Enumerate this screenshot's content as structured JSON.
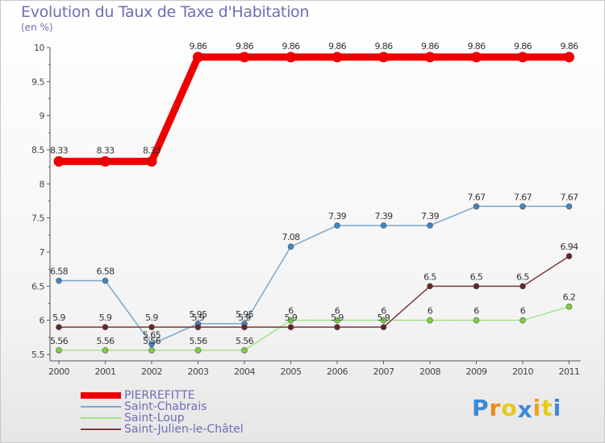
{
  "chart_data": {
    "type": "line",
    "title": "Evolution du Taux de Taxe d'Habitation",
    "subtitle": "(en %)",
    "xlabel": "",
    "ylabel": "",
    "categories": [
      "2000",
      "2001",
      "2002",
      "2003",
      "2004",
      "2005",
      "2006",
      "2007",
      "2008",
      "2009",
      "2010",
      "2011"
    ],
    "ylim": [
      5.5,
      10
    ],
    "yticks": [
      5.5,
      6,
      6.5,
      7,
      7.5,
      8,
      8.5,
      9,
      9.5,
      10
    ],
    "ytick_labels": [
      "5.5",
      "6",
      "6.5",
      "7",
      "7.5",
      "8",
      "8.5",
      "9",
      "9.5",
      "10"
    ],
    "grid": false,
    "legend_position": "bottom-left",
    "series": [
      {
        "name": "PIERREFITTE",
        "color": "#ee0000",
        "point_color": "#ee0000",
        "thick": true,
        "values": [
          8.33,
          8.33,
          8.33,
          9.86,
          9.86,
          9.86,
          9.86,
          9.86,
          9.86,
          9.86,
          9.86,
          9.86
        ],
        "labels": [
          "8.33",
          "8.33",
          "8.33",
          "9.86",
          "9.86",
          "9.86",
          "9.86",
          "9.86",
          "9.86",
          "9.86",
          "9.86",
          "9.86"
        ]
      },
      {
        "name": "Saint-Chabrais",
        "color": "#7aa6cc",
        "point_color": "#3f86c6",
        "thick": false,
        "values": [
          6.58,
          6.58,
          5.65,
          5.95,
          5.95,
          7.08,
          7.39,
          7.39,
          7.39,
          7.67,
          7.67,
          7.67
        ],
        "labels": [
          "6.58",
          "6.58",
          "5.65",
          "5.95",
          "5.95",
          "7.08",
          "7.39",
          "7.39",
          "7.39",
          "7.67",
          "7.67",
          "7.67"
        ]
      },
      {
        "name": "Saint-Loup",
        "color": "#a8e08a",
        "point_color": "#7ad23e",
        "thick": false,
        "values": [
          5.56,
          5.56,
          5.56,
          5.56,
          5.56,
          6,
          6,
          6,
          6,
          6,
          6,
          6.2
        ],
        "labels": [
          "5.56",
          "5.56",
          "5.56",
          "5.56",
          "5.56",
          "6",
          "6",
          "6",
          "6",
          "6",
          "6",
          "6.2"
        ]
      },
      {
        "name": "Saint-Julien-le-Châtel",
        "color": "#7a3a3a",
        "point_color": "#6b2424",
        "thick": false,
        "values": [
          5.9,
          5.9,
          5.9,
          5.9,
          5.9,
          5.9,
          5.9,
          5.9,
          6.5,
          6.5,
          6.5,
          6.94
        ],
        "labels": [
          "5.9",
          "5.9",
          "5.9",
          "5.9",
          "5.9",
          "5.9",
          "5.9",
          "5.9",
          "6.5",
          "6.5",
          "6.5",
          "6.94"
        ]
      }
    ]
  },
  "logo": {
    "text": "Proxiti",
    "letters": [
      "P",
      "r",
      "o",
      "x",
      "i",
      "t",
      "i"
    ],
    "colors": [
      "#3a8ad8",
      "#f08a1c",
      "#e8c81c",
      "#3a8ad8",
      "#f0a01c",
      "#e8c81c",
      "#3a8ad8"
    ]
  }
}
